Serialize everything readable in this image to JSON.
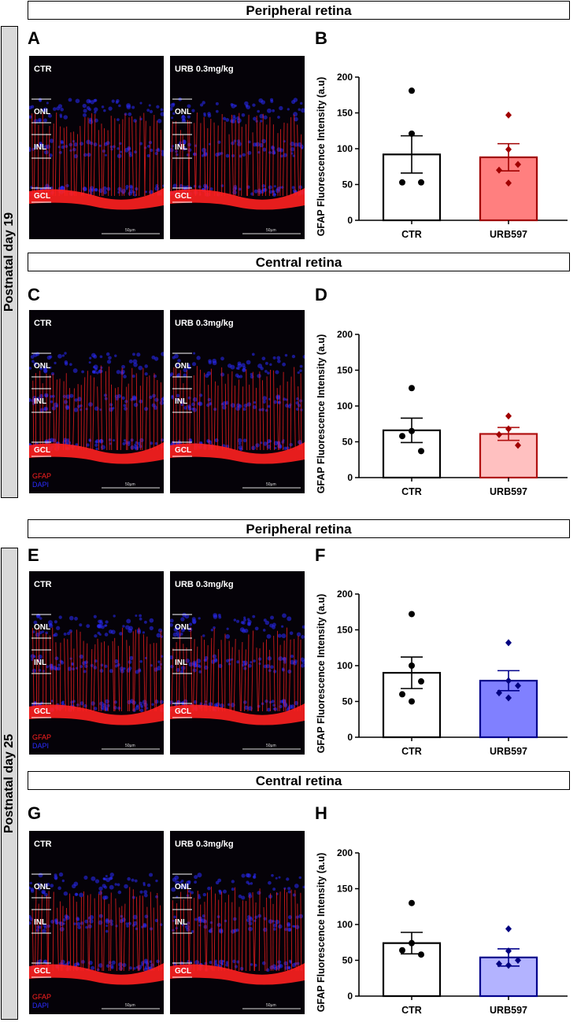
{
  "groups": [
    {
      "label": "Postnatal day 19"
    },
    {
      "label": "Postnatal day 25"
    }
  ],
  "sections": [
    {
      "title": "Peripheral retina"
    },
    {
      "title": "Central retina"
    },
    {
      "title": "Peripheral retina"
    },
    {
      "title": "Central retina"
    }
  ],
  "panels": [
    "A",
    "B",
    "C",
    "D",
    "E",
    "F",
    "G",
    "H"
  ],
  "micrographs": {
    "ctr_label": "CTR",
    "urb_label": "URB 0.3mg/kg",
    "layers": [
      "ONL",
      "INL",
      "GCL"
    ],
    "scale_bar": "50µm",
    "stain_gfap": "GFAP",
    "stain_dapi": "DAPI",
    "colors": {
      "gfap": "#ff2020",
      "dapi": "#2a2cff"
    }
  },
  "chart_data": [
    {
      "type": "bar",
      "panel": "B",
      "ylabel": "GFAP Fluorescence Intensity (a.u)",
      "categories": [
        "CTR",
        "URB597"
      ],
      "values": [
        92,
        88
      ],
      "sem": [
        26,
        19
      ],
      "ylim": [
        0,
        200
      ],
      "yticks": [
        0,
        50,
        100,
        150,
        200
      ],
      "points": [
        [
          181,
          121,
          53,
          53
        ],
        [
          147,
          99,
          78,
          70,
          52
        ]
      ],
      "fill": [
        "#ffffff",
        "#ff7f7f"
      ],
      "stroke": [
        "#000000",
        "#a00000"
      ],
      "point_color": [
        "#000000",
        "#a00000"
      ]
    },
    {
      "type": "bar",
      "panel": "D",
      "ylabel": "GFAP Fluorescence Intensity (a.u)",
      "categories": [
        "CTR",
        "URB597"
      ],
      "values": [
        66,
        61
      ],
      "sem": [
        17,
        9
      ],
      "ylim": [
        0,
        200
      ],
      "yticks": [
        0,
        50,
        100,
        150,
        200
      ],
      "points": [
        [
          125,
          65,
          58,
          37
        ],
        [
          86,
          68,
          60,
          45
        ]
      ],
      "fill": [
        "#ffffff",
        "#ffc0c0"
      ],
      "stroke": [
        "#000000",
        "#b01010"
      ],
      "point_color": [
        "#000000",
        "#a00000"
      ]
    },
    {
      "type": "bar",
      "panel": "F",
      "ylabel": "GFAP Fluorescence Intensity (a.u)",
      "categories": [
        "CTR",
        "URB597"
      ],
      "values": [
        90,
        79
      ],
      "sem": [
        22,
        14
      ],
      "ylim": [
        0,
        200
      ],
      "yticks": [
        0,
        50,
        100,
        150,
        200
      ],
      "points": [
        [
          172,
          100,
          78,
          60,
          50
        ],
        [
          132,
          79,
          72,
          62,
          55
        ]
      ],
      "fill": [
        "#ffffff",
        "#8080ff"
      ],
      "stroke": [
        "#000000",
        "#00008b"
      ],
      "point_color": [
        "#000000",
        "#000080"
      ]
    },
    {
      "type": "bar",
      "panel": "H",
      "ylabel": "GFAP Fluorescence Intensity (a.u)",
      "categories": [
        "CTR",
        "URB597"
      ],
      "values": [
        74,
        54
      ],
      "sem": [
        15,
        12
      ],
      "ylim": [
        0,
        200
      ],
      "yticks": [
        0,
        50,
        100,
        150,
        200
      ],
      "points": [
        [
          130,
          74,
          64,
          58
        ],
        [
          94,
          63,
          50,
          45,
          43
        ]
      ],
      "fill": [
        "#ffffff",
        "#b3b3ff"
      ],
      "stroke": [
        "#000000",
        "#00008b"
      ],
      "point_color": [
        "#000000",
        "#000080"
      ]
    }
  ]
}
